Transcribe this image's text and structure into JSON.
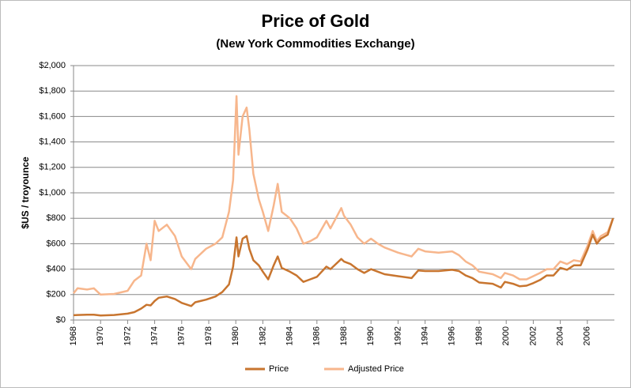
{
  "chart_data": {
    "type": "line",
    "title": "Price of Gold",
    "subtitle": "(New York Commodities Exchange)",
    "y_label": "$US / troyounce",
    "x": [
      1968,
      1968.3,
      1969,
      1969.5,
      1970,
      1971,
      1972,
      1972.5,
      1973,
      1973.4,
      1973.7,
      1974,
      1974.3,
      1974.9,
      1975.5,
      1976,
      1976.7,
      1977,
      1977.8,
      1978.5,
      1979,
      1979.5,
      1979.8,
      1980.05,
      1980.2,
      1980.5,
      1980.8,
      1981,
      1981.3,
      1981.7,
      1982,
      1982.4,
      1982.8,
      1983.1,
      1983.4,
      1984,
      1984.5,
      1985,
      1985.5,
      1986,
      1986.7,
      1987,
      1987.8,
      1988,
      1988.5,
      1989,
      1989.5,
      1990,
      1990.5,
      1991,
      1992,
      1993,
      1993.5,
      1994,
      1995,
      1996,
      1996.5,
      1997,
      1997.5,
      1998,
      1999,
      1999.6,
      1999.9,
      2000.5,
      2001,
      2001.5,
      2002,
      2002.5,
      2003,
      2003.5,
      2004,
      2004.5,
      2005,
      2005.5,
      2006,
      2006.4,
      2006.7,
      2007,
      2007.5,
      2007.9
    ],
    "series": [
      {
        "name": "Price",
        "color": "#c8752f",
        "values": [
          38,
          40,
          42,
          42,
          36,
          40,
          50,
          62,
          90,
          120,
          115,
          150,
          175,
          185,
          165,
          135,
          110,
          140,
          160,
          185,
          220,
          280,
          420,
          650,
          500,
          640,
          660,
          560,
          470,
          430,
          380,
          320,
          430,
          500,
          410,
          380,
          350,
          300,
          320,
          340,
          420,
          400,
          480,
          460,
          440,
          400,
          370,
          400,
          380,
          360,
          345,
          330,
          390,
          385,
          385,
          395,
          385,
          350,
          330,
          295,
          285,
          255,
          300,
          285,
          265,
          270,
          290,
          315,
          350,
          350,
          410,
          395,
          430,
          430,
          550,
          670,
          600,
          640,
          670,
          800
        ]
      },
      {
        "name": "Adjusted Price",
        "color": "#f7b68c",
        "values": [
          210,
          250,
          240,
          250,
          200,
          205,
          230,
          310,
          350,
          600,
          470,
          780,
          700,
          750,
          660,
          500,
          400,
          480,
          560,
          600,
          650,
          850,
          1100,
          1760,
          1300,
          1600,
          1670,
          1500,
          1150,
          950,
          850,
          700,
          900,
          1070,
          850,
          800,
          720,
          600,
          620,
          650,
          780,
          720,
          880,
          820,
          750,
          650,
          600,
          640,
          600,
          570,
          530,
          500,
          560,
          540,
          530,
          540,
          510,
          460,
          430,
          380,
          360,
          330,
          370,
          350,
          320,
          320,
          345,
          370,
          400,
          400,
          460,
          440,
          470,
          460,
          580,
          700,
          620,
          660,
          690,
          800
        ]
      }
    ],
    "xlim": [
      1968,
      2008
    ],
    "xticks": [
      1968,
      1970,
      1972,
      1974,
      1976,
      1978,
      1980,
      1982,
      1984,
      1986,
      1988,
      1990,
      1992,
      1994,
      1996,
      1998,
      2000,
      2002,
      2004,
      2006
    ],
    "ylim": [
      0,
      2000
    ],
    "yticks": [
      {
        "value": 0,
        "label": "$0"
      },
      {
        "value": 200,
        "label": "$200"
      },
      {
        "value": 400,
        "label": "$400"
      },
      {
        "value": 600,
        "label": "$600"
      },
      {
        "value": 800,
        "label": "$800"
      },
      {
        "value": 1000,
        "label": "$1,000"
      },
      {
        "value": 1200,
        "label": "$1,200"
      },
      {
        "value": 1400,
        "label": "$1,400"
      },
      {
        "value": 1600,
        "label": "$1,600"
      },
      {
        "value": 1800,
        "label": "$1,800"
      },
      {
        "value": 2000,
        "label": "$2,000"
      }
    ],
    "grid": true,
    "legend": "bottom"
  }
}
